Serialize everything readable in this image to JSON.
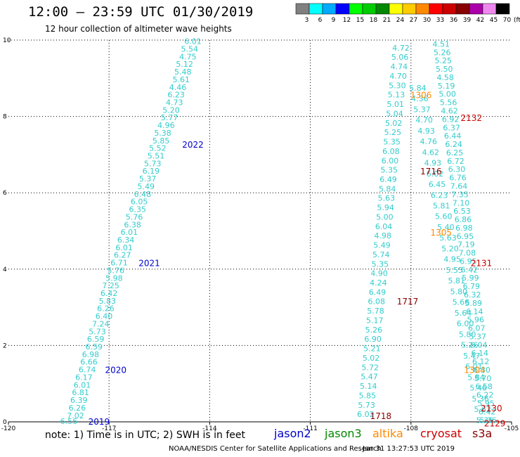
{
  "header": {
    "title": "12:00 – 23:59 UTC 01/30/2019",
    "subtitle": "12 hour collection of altimeter wave heights"
  },
  "colorbar": {
    "unit": "(ft)",
    "bins": [
      {
        "label": "3",
        "color": "#808080"
      },
      {
        "label": "6",
        "color": "#00ffff"
      },
      {
        "label": "9",
        "color": "#00aaff"
      },
      {
        "label": "12",
        "color": "#0000ff"
      },
      {
        "label": "15",
        "color": "#00ff00"
      },
      {
        "label": "18",
        "color": "#00cc00"
      },
      {
        "label": "21",
        "color": "#008800"
      },
      {
        "label": "24",
        "color": "#ffff00"
      },
      {
        "label": "27",
        "color": "#ffcc00"
      },
      {
        "label": "30",
        "color": "#ff8800"
      },
      {
        "label": "33",
        "color": "#ff0000"
      },
      {
        "label": "36",
        "color": "#cc0000"
      },
      {
        "label": "39",
        "color": "#880000"
      },
      {
        "label": "42",
        "color": "#aa00aa"
      },
      {
        "label": "45",
        "color": "#ee88ee"
      },
      {
        "label": "70",
        "color": "#000000"
      }
    ]
  },
  "chart_data": {
    "type": "scatter",
    "xlim": [
      -120,
      -105
    ],
    "ylim": [
      0,
      10
    ],
    "x_ticks": [
      -120,
      -117,
      -114,
      -111,
      -108,
      -105
    ],
    "y_ticks": [
      0,
      2,
      4,
      6,
      8,
      10
    ],
    "grid": true,
    "value_color": "#33cccc",
    "series": [
      {
        "name": "jason2",
        "color": "#0000cc",
        "points": [
          [
            -118.2,
            0.02,
            "6.56"
          ],
          [
            -118.0,
            0.17,
            "7.02"
          ],
          [
            -117.95,
            0.37,
            "6.26"
          ],
          [
            -117.9,
            0.57,
            "6.39"
          ],
          [
            -117.85,
            0.77,
            "6.81"
          ],
          [
            -117.8,
            0.97,
            "6.01"
          ],
          [
            -117.75,
            1.17,
            "6.17"
          ],
          [
            -117.65,
            1.37,
            "6.74"
          ],
          [
            -117.6,
            1.57,
            "6.66"
          ],
          [
            -117.55,
            1.77,
            "6.98"
          ],
          [
            -117.45,
            1.97,
            "6.59"
          ],
          [
            -117.4,
            2.17,
            "6.59"
          ],
          [
            -117.35,
            2.37,
            "5.73"
          ],
          [
            -117.25,
            2.57,
            "7.24"
          ],
          [
            -117.15,
            2.77,
            "6.40"
          ],
          [
            -117.1,
            2.97,
            "6.26"
          ],
          [
            -117.05,
            3.17,
            "5.83"
          ],
          [
            -117.0,
            3.37,
            "6.42"
          ],
          [
            -116.95,
            3.57,
            "7.25"
          ],
          [
            -116.85,
            3.77,
            "5.98"
          ],
          [
            -116.8,
            3.97,
            "5.76"
          ],
          [
            -116.7,
            4.17,
            "6.71"
          ],
          [
            -116.6,
            4.37,
            "6.27"
          ],
          [
            -116.55,
            4.57,
            "6.01"
          ],
          [
            -116.5,
            4.77,
            "6.34"
          ],
          [
            -116.4,
            4.97,
            "6.01"
          ],
          [
            -116.3,
            5.17,
            "6.38"
          ],
          [
            -116.25,
            5.37,
            "5.76"
          ],
          [
            -116.15,
            5.57,
            "6.35"
          ],
          [
            -116.1,
            5.77,
            "6.05"
          ],
          [
            -116.0,
            5.97,
            "6.48"
          ],
          [
            -115.9,
            6.17,
            "5.49"
          ],
          [
            -115.85,
            6.37,
            "5.37"
          ],
          [
            -115.75,
            6.57,
            "6.19"
          ],
          [
            -115.7,
            6.77,
            "5.73"
          ],
          [
            -115.6,
            6.97,
            "5.51"
          ],
          [
            -115.55,
            7.17,
            "5.52"
          ],
          [
            -115.45,
            7.37,
            "5.85"
          ],
          [
            -115.4,
            7.57,
            "5.38"
          ],
          [
            -115.3,
            7.77,
            "4.96"
          ],
          [
            -115.2,
            7.97,
            "5.77"
          ],
          [
            -115.15,
            8.17,
            "5.20"
          ],
          [
            -115.05,
            8.37,
            "4.73"
          ],
          [
            -115.0,
            8.57,
            "6.23"
          ],
          [
            -114.95,
            8.77,
            "4.46"
          ],
          [
            -114.85,
            8.97,
            "5.61"
          ],
          [
            -114.8,
            9.17,
            "5.48"
          ],
          [
            -114.75,
            9.37,
            "5.12"
          ],
          [
            -114.65,
            9.57,
            "4.75"
          ],
          [
            -114.6,
            9.77,
            "5.54"
          ],
          [
            -114.5,
            9.97,
            "6.01"
          ]
        ]
      }
    ],
    "track_labels": [
      {
        "text": "2019",
        "color": "#0000cc",
        "x": -117.3,
        "y": 0.02
      },
      {
        "text": "2020",
        "color": "#0000cc",
        "x": -116.8,
        "y": 1.37
      },
      {
        "text": "2021",
        "color": "#0000cc",
        "x": -115.8,
        "y": 4.17
      },
      {
        "text": "2022",
        "color": "#0000cc",
        "x": -114.5,
        "y": 7.27
      },
      {
        "text": "1718",
        "color": "#880000",
        "x": -108.9,
        "y": 0.17
      },
      {
        "text": "1717",
        "color": "#880000",
        "x": -108.1,
        "y": 3.17
      },
      {
        "text": "1716",
        "color": "#880000",
        "x": -107.4,
        "y": 6.57
      },
      {
        "text": "1306",
        "color": "#ff8800",
        "x": -107.7,
        "y": 8.57
      },
      {
        "text": "1305",
        "color": "#ff8800",
        "x": -107.1,
        "y": 4.97
      },
      {
        "text": "1304",
        "color": "#ff8800",
        "x": -106.1,
        "y": 1.37
      },
      {
        "text": "2132",
        "color": "#cc0000",
        "x": -106.2,
        "y": 7.97
      },
      {
        "text": "2131",
        "color": "#cc0000",
        "x": -105.9,
        "y": 4.17
      },
      {
        "text": "2130",
        "color": "#cc0000",
        "x": -105.6,
        "y": 0.37
      },
      {
        "text": "2129",
        "color": "#cc0000",
        "x": -105.5,
        "y": -0.03
      }
    ],
    "left_track_values": [
      "4.72",
      "5.06",
      "4.74",
      "4.70",
      "5.30",
      "5.13",
      "5.01",
      "5.04",
      "5.02",
      "5.25",
      "5.35",
      "6.08",
      "6.00",
      "5.35",
      "6.49",
      "5.84",
      "5.63",
      "5.94",
      "5.00",
      "6.04",
      "4.98",
      "5.49",
      "5.74",
      "5.35",
      "4.90",
      "4.24",
      "6.49",
      "6.08",
      "5.78",
      "5.17",
      "5.26",
      "6.90",
      "5.21",
      "5.02",
      "5.72",
      "5.47",
      "5.14",
      "5.85",
      "5.73",
      "6.02"
    ],
    "mid_track_values": [
      "5.84",
      "4.36",
      "5.37",
      "4.70",
      "4.93",
      "4.76",
      "4.62",
      "4.93",
      "6.02",
      "6.45",
      "6.23",
      "5.81",
      "5.60",
      "5.40",
      "5.63",
      "5.20",
      "4.95",
      "5.55",
      "5.81",
      "5.80",
      "5.66",
      "5.64",
      "6.00",
      "5.80",
      "5.26",
      "5.47",
      "6.01",
      "5.84",
      "5.46",
      "5.36",
      "5.62",
      "5.36"
    ],
    "right_track_values": [
      "4.51",
      "5.26",
      "5.25",
      "5.50",
      "4.58",
      "5.19",
      "5.00",
      "5.56",
      "4.62",
      "6.92",
      "6.37",
      "6.44",
      "6.24",
      "6.25",
      "6.72",
      "6.30",
      "6.76",
      "7.64",
      "7.35",
      "7.10",
      "6.53",
      "6.86",
      "6.98",
      "6.95",
      "7.19",
      "7.08",
      "6.95",
      "6.42",
      "5.99",
      "6.79",
      "6.32",
      "5.89",
      "6.14",
      "5.96",
      "6.07",
      "5.37",
      "6.04",
      "6.14",
      "6.12",
      "6.30",
      "5.70",
      "6.58",
      "6.22",
      "5.95",
      "6.42",
      "5.36"
    ]
  },
  "footer": {
    "note": "note:  1) Time is in UTC;  2) SWH is in feet",
    "legend": [
      {
        "label": "jason2",
        "color": "#0000cc"
      },
      {
        "label": "jason3",
        "color": "#008800"
      },
      {
        "label": "altika",
        "color": "#ff8800"
      },
      {
        "label": "cryosat",
        "color": "#cc0000"
      },
      {
        "label": "s3a",
        "color": "#880000"
      }
    ],
    "credit": "NOAA/NESDIS Center for Satellite Applications and Research",
    "timestamp": "Jan 31 13:27:53 UTC 2019"
  }
}
